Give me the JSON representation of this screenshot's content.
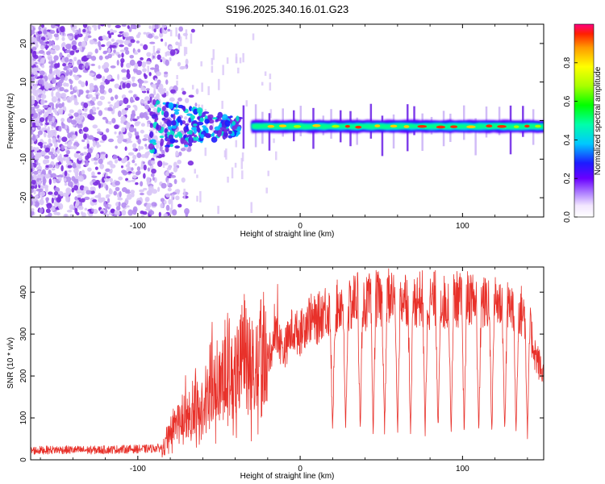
{
  "title": "S196.2025.340.16.01.G23",
  "colors": {
    "snr_line": "#e8312a",
    "frame": "#000000",
    "speckle_light": "#d9c6f7",
    "speckle_mid": "#b48cf0",
    "speckle_dark": "#7a2be0"
  },
  "chart_data": [
    {
      "id": "spectrogram",
      "type": "heatmap",
      "xlabel": "Height of straight line (km)",
      "ylabel": "Frequency (Hz)",
      "xlim": [
        -166,
        150
      ],
      "ylim": [
        -25,
        25
      ],
      "xticks": [
        -100,
        0,
        100
      ],
      "xtick_labels": [
        "-100",
        "0",
        "100"
      ],
      "yticks": [
        -20,
        -10,
        0,
        10,
        20
      ],
      "ytick_labels": [
        "-20",
        "-10",
        "0",
        "10",
        "20"
      ],
      "colorbar": {
        "label": "Normalized spectral amplitude",
        "range": [
          0,
          1
        ],
        "ticks": [
          0.0,
          0.2,
          0.4,
          0.6,
          0.8
        ],
        "tick_labels": [
          "0.0",
          "0.2",
          "0.4",
          "0.6",
          "0.8"
        ]
      },
      "signal_band": {
        "x_start": -30,
        "x_end": 150,
        "center_frequency": -1.5,
        "typical_amplitude": 0.45,
        "peak_amplitude": 0.95
      },
      "noise_region": {
        "x_start": -166,
        "x_end": -85,
        "frequency_range": [
          -25,
          25
        ]
      }
    },
    {
      "id": "snr",
      "type": "line",
      "xlabel": "Height of straight line (km)",
      "ylabel": "SNR (10 * v/v)",
      "xlim": [
        -166,
        150
      ],
      "ylim": [
        0,
        460
      ],
      "xticks": [
        -100,
        0,
        100
      ],
      "xtick_labels": [
        "-100",
        "0",
        "100"
      ],
      "yticks": [
        0,
        100,
        200,
        300,
        400
      ],
      "ytick_labels": [
        "0",
        "100",
        "200",
        "300",
        "400"
      ],
      "series": [
        {
          "name": "SNR",
          "description": "noisy trace; values approximate envelope",
          "x": [
            -166,
            -150,
            -130,
            -110,
            -95,
            -85,
            -80,
            -75,
            -70,
            -65,
            -60,
            -55,
            -50,
            -45,
            -40,
            -35,
            -30,
            -25,
            -20,
            -15,
            -10,
            -5,
            0,
            5,
            10,
            15,
            20,
            25,
            30,
            35,
            40,
            45,
            50,
            55,
            60,
            65,
            70,
            75,
            80,
            85,
            90,
            95,
            100,
            105,
            110,
            115,
            120,
            125,
            130,
            135,
            140,
            145,
            150
          ],
          "values": [
            18,
            20,
            19,
            21,
            22,
            25,
            70,
            110,
            95,
            140,
            120,
            200,
            180,
            230,
            190,
            260,
            220,
            280,
            240,
            300,
            260,
            310,
            300,
            340,
            330,
            360,
            350,
            375,
            360,
            390,
            370,
            385,
            380,
            395,
            380,
            390,
            380,
            385,
            375,
            390,
            370,
            385,
            380,
            390,
            370,
            375,
            380,
            370,
            365,
            360,
            340,
            250,
            200
          ],
          "dropout_centers": [
            20,
            28,
            37,
            45,
            52,
            60,
            68,
            77,
            85,
            93,
            101,
            110,
            118,
            126,
            133,
            140
          ],
          "dropout_floor": 45
        }
      ]
    }
  ]
}
